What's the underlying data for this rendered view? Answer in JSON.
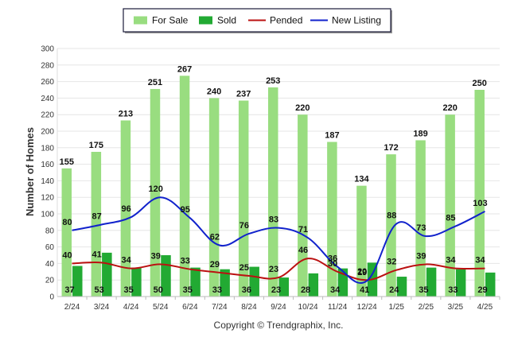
{
  "chart_data": {
    "type": "bar",
    "title": "",
    "xlabel": "",
    "ylabel": "Number of Homes",
    "ylim": [
      0,
      300
    ],
    "yticks": [
      0,
      20,
      40,
      60,
      80,
      100,
      120,
      140,
      160,
      180,
      200,
      220,
      240,
      260,
      280,
      300
    ],
    "grid": true,
    "legend_position": "top",
    "categories": [
      "2/24",
      "3/24",
      "4/24",
      "5/24",
      "6/24",
      "7/24",
      "8/24",
      "9/24",
      "10/24",
      "11/24",
      "12/24",
      "1/25",
      "2/25",
      "3/25",
      "4/25"
    ],
    "series": [
      {
        "name": "For Sale",
        "kind": "bar",
        "color": "#99dd80",
        "values": [
          155,
          175,
          213,
          251,
          267,
          240,
          237,
          253,
          220,
          187,
          134,
          172,
          189,
          220,
          250
        ]
      },
      {
        "name": "Sold",
        "kind": "bar",
        "color": "#22aa33",
        "values": [
          37,
          53,
          35,
          50,
          35,
          33,
          36,
          23,
          28,
          34,
          41,
          24,
          35,
          33,
          29
        ]
      },
      {
        "name": "Pended",
        "kind": "line",
        "color": "#bb1111",
        "values": [
          40,
          41,
          34,
          39,
          33,
          29,
          25,
          23,
          46,
          30,
          20,
          32,
          39,
          34,
          34
        ]
      },
      {
        "name": "New Listing",
        "kind": "line",
        "color": "#1122cc",
        "values": [
          80,
          87,
          96,
          120,
          95,
          62,
          76,
          83,
          71,
          36,
          19,
          88,
          73,
          85,
          103
        ]
      }
    ]
  },
  "footer": {
    "copyright": "Copyright © Trendgraphix, Inc."
  }
}
